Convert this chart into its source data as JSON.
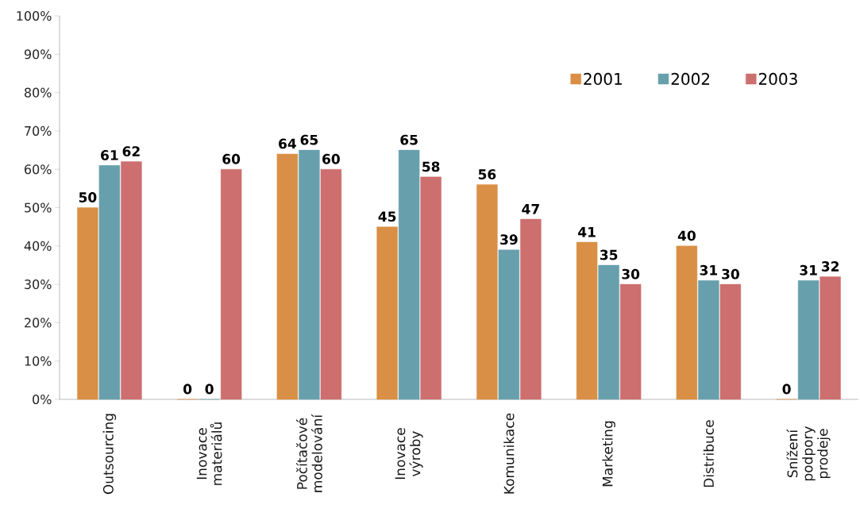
{
  "chart_data": {
    "type": "bar",
    "categories": [
      "Outsourcing",
      "Inovace materiálů",
      "Počítačové modelování",
      "Inovace výroby",
      "Komunikace",
      "Marketing",
      "Distribuce",
      "Snížení podpory prodeje"
    ],
    "series": [
      {
        "name": "2001",
        "color": "#d98f45",
        "values": [
          50,
          0,
          64,
          45,
          56,
          41,
          40,
          0
        ]
      },
      {
        "name": "2002",
        "color": "#67a0ac",
        "values": [
          61,
          0,
          65,
          65,
          39,
          35,
          31,
          31
        ]
      },
      {
        "name": "2003",
        "color": "#cd6f6f",
        "values": [
          62,
          60,
          60,
          58,
          47,
          30,
          30,
          32
        ]
      }
    ],
    "ylim": [
      0,
      100
    ],
    "yticks": [
      {
        "value": 0,
        "label": "0%"
      },
      {
        "value": 10,
        "label": "10%"
      },
      {
        "value": 20,
        "label": "20%"
      },
      {
        "value": 30,
        "label": "30%"
      },
      {
        "value": 40,
        "label": "40%"
      },
      {
        "value": 50,
        "label": "50%"
      },
      {
        "value": 60,
        "label": "60%"
      },
      {
        "value": 70,
        "label": "70%"
      },
      {
        "value": 80,
        "label": "80%"
      },
      {
        "value": 90,
        "label": "90%"
      },
      {
        "value": 100,
        "label": "100%"
      }
    ],
    "data_labels": true,
    "grid": false,
    "legend": "top right"
  }
}
